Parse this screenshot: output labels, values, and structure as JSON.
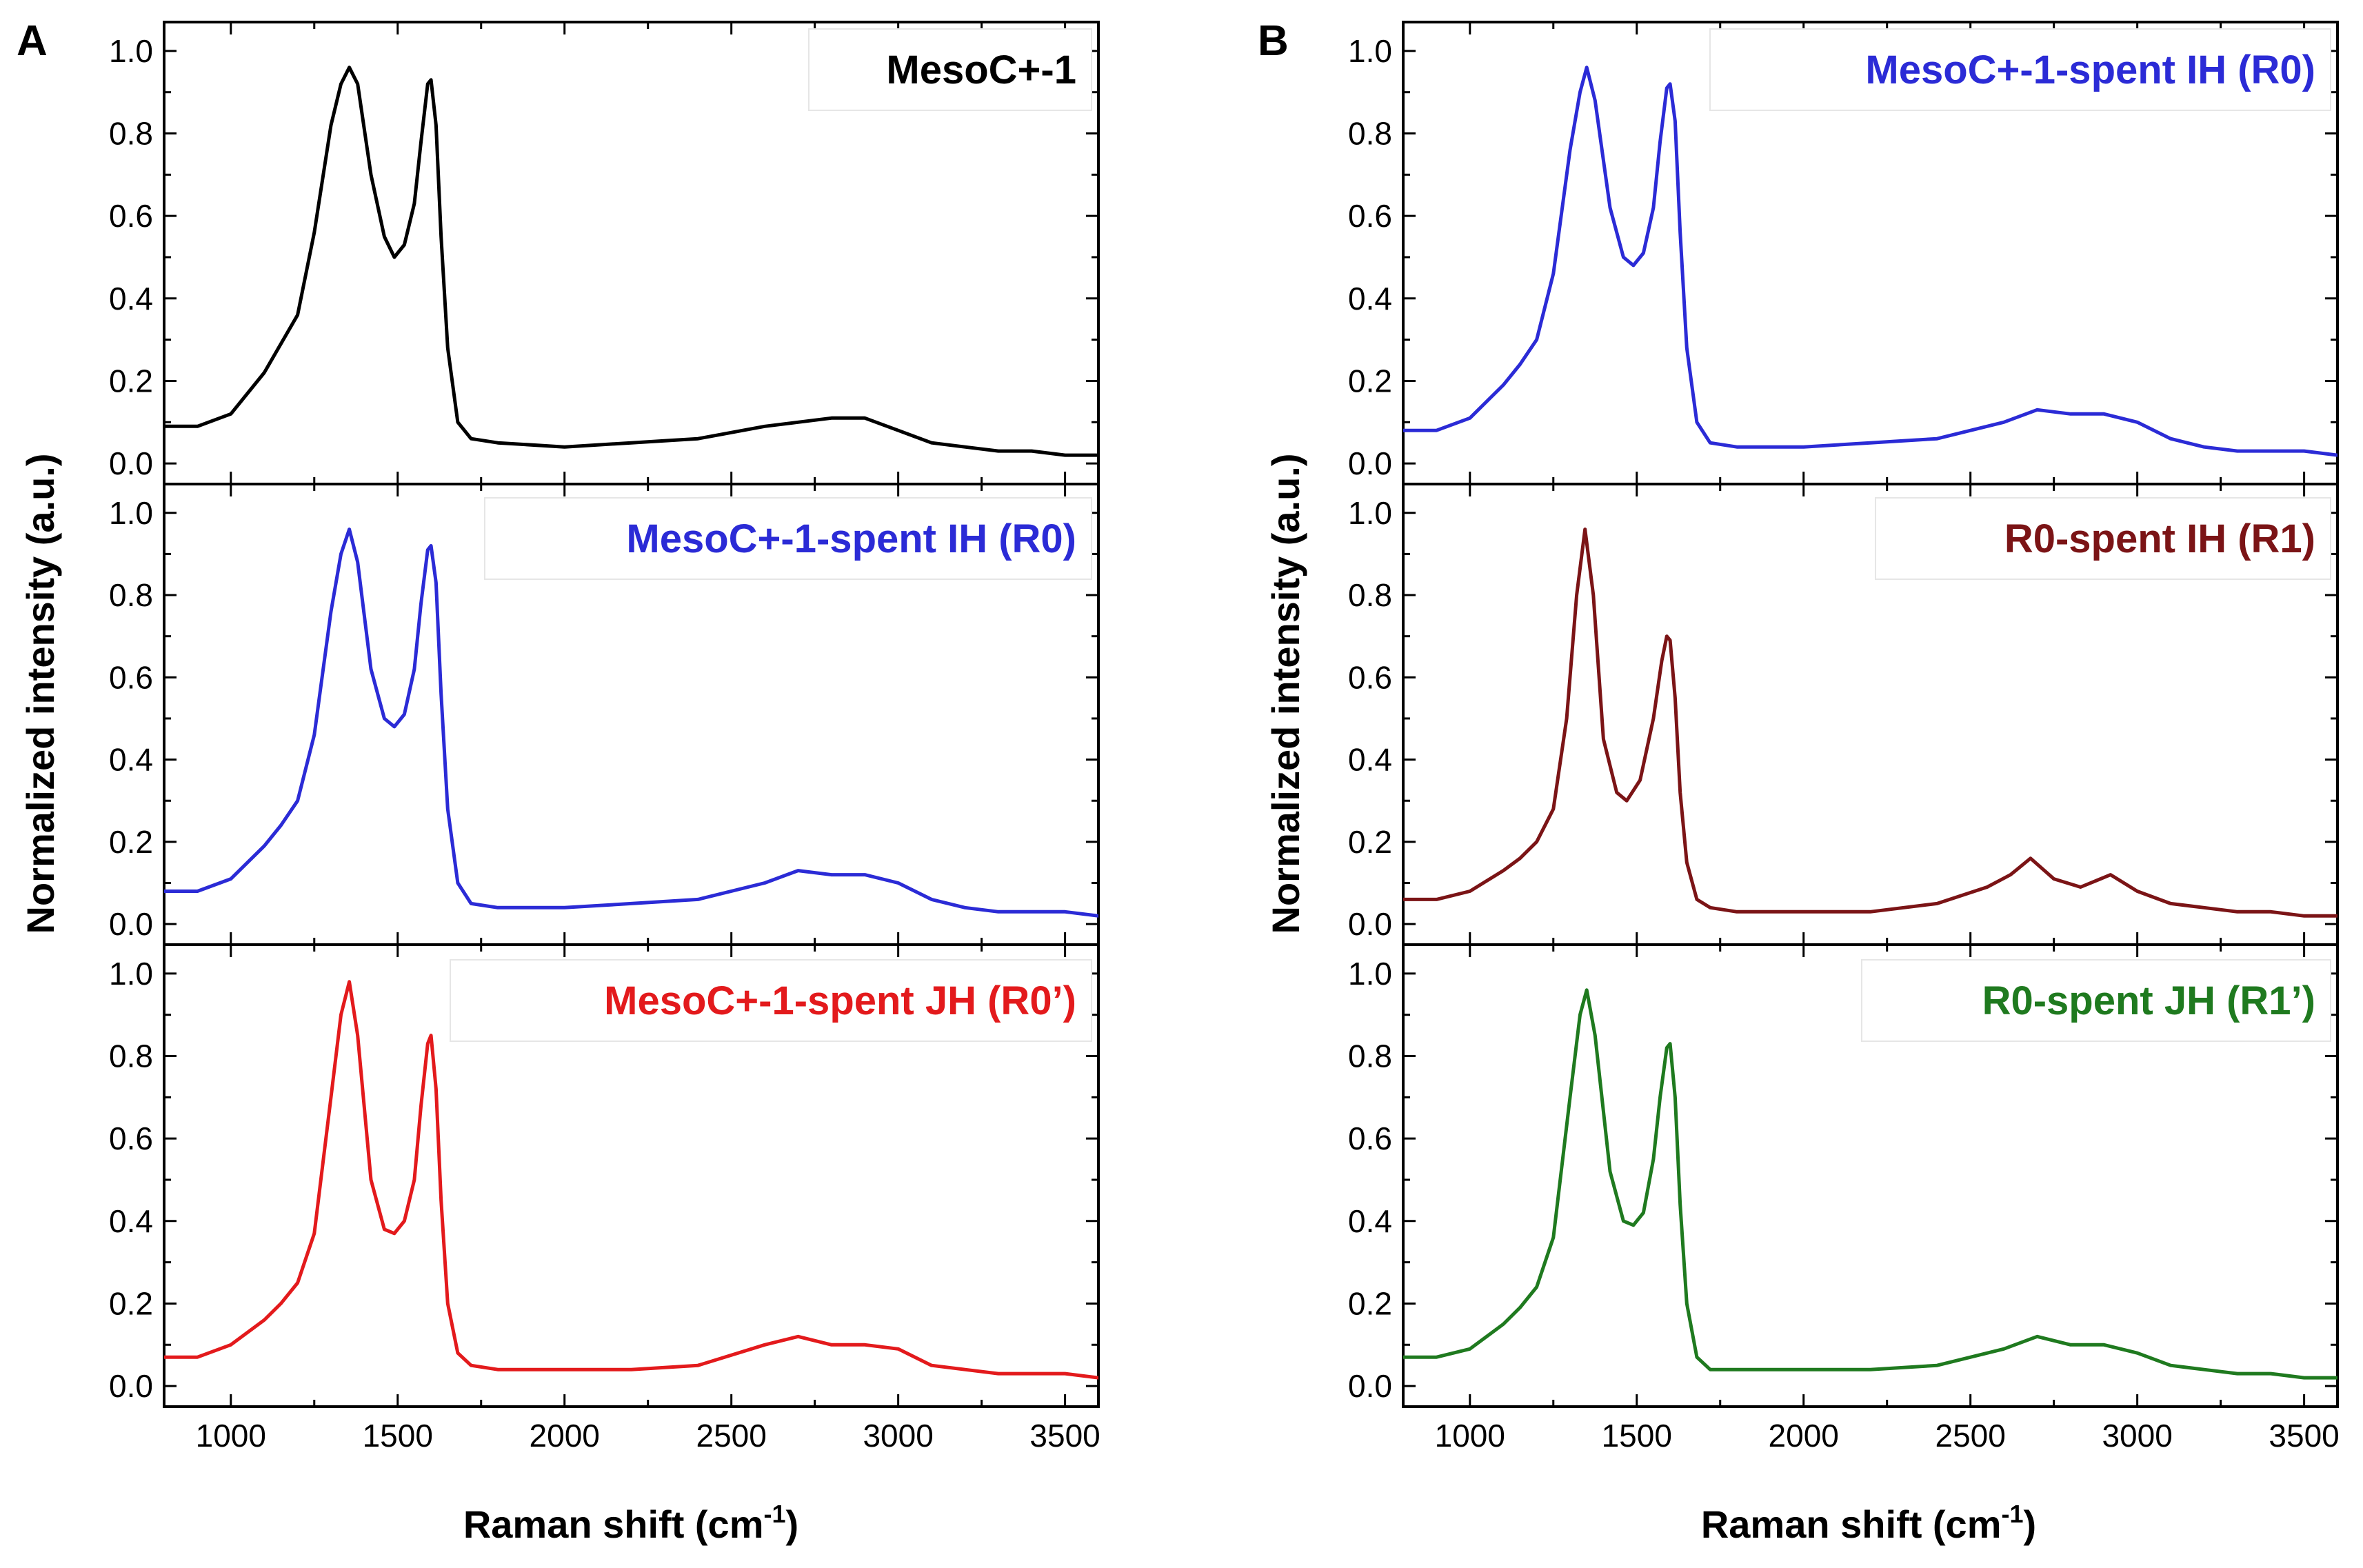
{
  "figure": {
    "panels": [
      {
        "label": "A",
        "ylabel": "Normalized intensity (a.u.)",
        "xlabel_main": "Raman shift (cm",
        "xlabel_sup": "-1",
        "xlabel_end": ")"
      },
      {
        "label": "B",
        "ylabel": "Normalized intensity (a.u.)",
        "xlabel_main": "Raman shift (cm",
        "xlabel_sup": "-1",
        "xlabel_end": ")"
      }
    ]
  },
  "chart_data": [
    {
      "type": "line",
      "panel": "A",
      "subplot": 1,
      "xlim": [
        800,
        3600
      ],
      "ylim": [
        -0.05,
        1.07
      ],
      "x_ticks": [
        1000,
        1500,
        2000,
        2500,
        3000,
        3500
      ],
      "y_ticks": [
        0.0,
        0.2,
        0.4,
        0.6,
        0.8,
        1.0
      ],
      "series": [
        {
          "name": "MesoC+-1",
          "color": "#000000",
          "x": [
            800,
            900,
            1000,
            1100,
            1150,
            1200,
            1250,
            1300,
            1330,
            1355,
            1380,
            1420,
            1460,
            1490,
            1520,
            1550,
            1570,
            1590,
            1600,
            1615,
            1630,
            1650,
            1680,
            1720,
            1800,
            2000,
            2200,
            2400,
            2600,
            2700,
            2800,
            2900,
            3000,
            3100,
            3200,
            3300,
            3400,
            3500,
            3600
          ],
          "y": [
            0.09,
            0.09,
            0.12,
            0.22,
            0.29,
            0.36,
            0.56,
            0.82,
            0.92,
            0.96,
            0.92,
            0.7,
            0.55,
            0.5,
            0.53,
            0.63,
            0.78,
            0.92,
            0.93,
            0.82,
            0.55,
            0.28,
            0.1,
            0.06,
            0.05,
            0.04,
            0.05,
            0.06,
            0.09,
            0.1,
            0.11,
            0.11,
            0.08,
            0.05,
            0.04,
            0.03,
            0.03,
            0.02,
            0.02
          ]
        }
      ]
    },
    {
      "type": "line",
      "panel": "A",
      "subplot": 2,
      "xlim": [
        800,
        3600
      ],
      "ylim": [
        -0.05,
        1.07
      ],
      "x_ticks": [
        1000,
        1500,
        2000,
        2500,
        3000,
        3500
      ],
      "y_ticks": [
        0.0,
        0.2,
        0.4,
        0.6,
        0.8,
        1.0
      ],
      "series": [
        {
          "name": "MesoC+-1-spent IH (R0)",
          "color": "#2b2bd6",
          "x": [
            800,
            900,
            1000,
            1100,
            1150,
            1200,
            1250,
            1300,
            1330,
            1355,
            1380,
            1420,
            1460,
            1490,
            1520,
            1550,
            1570,
            1590,
            1600,
            1615,
            1630,
            1650,
            1680,
            1720,
            1800,
            2000,
            2200,
            2400,
            2600,
            2700,
            2800,
            2900,
            3000,
            3100,
            3200,
            3300,
            3400,
            3500,
            3600
          ],
          "y": [
            0.08,
            0.08,
            0.11,
            0.19,
            0.24,
            0.3,
            0.46,
            0.76,
            0.9,
            0.96,
            0.88,
            0.62,
            0.5,
            0.48,
            0.51,
            0.62,
            0.78,
            0.91,
            0.92,
            0.83,
            0.56,
            0.28,
            0.1,
            0.05,
            0.04,
            0.04,
            0.05,
            0.06,
            0.1,
            0.13,
            0.12,
            0.12,
            0.1,
            0.06,
            0.04,
            0.03,
            0.03,
            0.03,
            0.02
          ]
        }
      ]
    },
    {
      "type": "line",
      "panel": "A",
      "subplot": 3,
      "xlim": [
        800,
        3600
      ],
      "ylim": [
        -0.05,
        1.07
      ],
      "x_ticks": [
        1000,
        1500,
        2000,
        2500,
        3000,
        3500
      ],
      "y_ticks": [
        0.0,
        0.2,
        0.4,
        0.6,
        0.8,
        1.0
      ],
      "series": [
        {
          "name": "MesoC+-1-spent JH (R0’)",
          "color": "#e31a1c",
          "x": [
            800,
            900,
            1000,
            1100,
            1150,
            1200,
            1250,
            1300,
            1330,
            1355,
            1380,
            1420,
            1460,
            1490,
            1520,
            1550,
            1570,
            1590,
            1600,
            1615,
            1630,
            1650,
            1680,
            1720,
            1800,
            2000,
            2200,
            2400,
            2600,
            2700,
            2800,
            2900,
            3000,
            3100,
            3200,
            3300,
            3400,
            3500,
            3600
          ],
          "y": [
            0.07,
            0.07,
            0.1,
            0.16,
            0.2,
            0.25,
            0.37,
            0.7,
            0.9,
            0.98,
            0.85,
            0.5,
            0.38,
            0.37,
            0.4,
            0.5,
            0.68,
            0.83,
            0.85,
            0.72,
            0.45,
            0.2,
            0.08,
            0.05,
            0.04,
            0.04,
            0.04,
            0.05,
            0.1,
            0.12,
            0.1,
            0.1,
            0.09,
            0.05,
            0.04,
            0.03,
            0.03,
            0.03,
            0.02
          ]
        }
      ]
    },
    {
      "type": "line",
      "panel": "B",
      "subplot": 1,
      "xlim": [
        800,
        3600
      ],
      "ylim": [
        -0.05,
        1.07
      ],
      "x_ticks": [
        1000,
        1500,
        2000,
        2500,
        3000,
        3500
      ],
      "y_ticks": [
        0.0,
        0.2,
        0.4,
        0.6,
        0.8,
        1.0
      ],
      "series": [
        {
          "name": "MesoC+-1-spent IH (R0)",
          "color": "#2b2bd6",
          "x": [
            800,
            900,
            1000,
            1100,
            1150,
            1200,
            1250,
            1300,
            1330,
            1350,
            1375,
            1420,
            1460,
            1490,
            1520,
            1550,
            1570,
            1590,
            1600,
            1615,
            1630,
            1650,
            1680,
            1720,
            1800,
            2000,
            2200,
            2400,
            2600,
            2700,
            2800,
            2900,
            3000,
            3100,
            3200,
            3300,
            3400,
            3500,
            3600
          ],
          "y": [
            0.08,
            0.08,
            0.11,
            0.19,
            0.24,
            0.3,
            0.46,
            0.76,
            0.9,
            0.96,
            0.88,
            0.62,
            0.5,
            0.48,
            0.51,
            0.62,
            0.78,
            0.91,
            0.92,
            0.83,
            0.56,
            0.28,
            0.1,
            0.05,
            0.04,
            0.04,
            0.05,
            0.06,
            0.1,
            0.13,
            0.12,
            0.12,
            0.1,
            0.06,
            0.04,
            0.03,
            0.03,
            0.03,
            0.02
          ]
        }
      ]
    },
    {
      "type": "line",
      "panel": "B",
      "subplot": 2,
      "xlim": [
        800,
        3600
      ],
      "ylim": [
        -0.05,
        1.07
      ],
      "x_ticks": [
        1000,
        1500,
        2000,
        2500,
        3000,
        3500
      ],
      "y_ticks": [
        0.0,
        0.2,
        0.4,
        0.6,
        0.8,
        1.0
      ],
      "series": [
        {
          "name": "R0-spent IH (R1)",
          "color": "#7b1416",
          "x": [
            800,
            900,
            1000,
            1100,
            1150,
            1200,
            1250,
            1290,
            1320,
            1345,
            1370,
            1400,
            1440,
            1470,
            1510,
            1550,
            1575,
            1590,
            1600,
            1615,
            1630,
            1650,
            1680,
            1720,
            1800,
            2000,
            2200,
            2400,
            2550,
            2620,
            2680,
            2750,
            2830,
            2920,
            3000,
            3100,
            3200,
            3300,
            3400,
            3500,
            3600
          ],
          "y": [
            0.06,
            0.06,
            0.08,
            0.13,
            0.16,
            0.2,
            0.28,
            0.5,
            0.8,
            0.96,
            0.8,
            0.45,
            0.32,
            0.3,
            0.35,
            0.5,
            0.64,
            0.7,
            0.69,
            0.55,
            0.32,
            0.15,
            0.06,
            0.04,
            0.03,
            0.03,
            0.03,
            0.05,
            0.09,
            0.12,
            0.16,
            0.11,
            0.09,
            0.12,
            0.08,
            0.05,
            0.04,
            0.03,
            0.03,
            0.02,
            0.02
          ]
        }
      ]
    },
    {
      "type": "line",
      "panel": "B",
      "subplot": 3,
      "xlim": [
        800,
        3600
      ],
      "ylim": [
        -0.05,
        1.07
      ],
      "x_ticks": [
        1000,
        1500,
        2000,
        2500,
        3000,
        3500
      ],
      "y_ticks": [
        0.0,
        0.2,
        0.4,
        0.6,
        0.8,
        1.0
      ],
      "series": [
        {
          "name": "R0-spent JH (R1’)",
          "color": "#1f7a1f",
          "x": [
            800,
            900,
            1000,
            1100,
            1150,
            1200,
            1250,
            1300,
            1330,
            1350,
            1375,
            1420,
            1460,
            1490,
            1520,
            1550,
            1570,
            1590,
            1600,
            1615,
            1630,
            1650,
            1680,
            1720,
            1800,
            2000,
            2200,
            2400,
            2600,
            2700,
            2800,
            2900,
            3000,
            3100,
            3200,
            3300,
            3400,
            3500,
            3600
          ],
          "y": [
            0.07,
            0.07,
            0.09,
            0.15,
            0.19,
            0.24,
            0.36,
            0.7,
            0.9,
            0.96,
            0.85,
            0.52,
            0.4,
            0.39,
            0.42,
            0.55,
            0.7,
            0.82,
            0.83,
            0.7,
            0.44,
            0.2,
            0.07,
            0.04,
            0.04,
            0.04,
            0.04,
            0.05,
            0.09,
            0.12,
            0.1,
            0.1,
            0.08,
            0.05,
            0.04,
            0.03,
            0.03,
            0.02,
            0.02
          ]
        }
      ]
    }
  ]
}
